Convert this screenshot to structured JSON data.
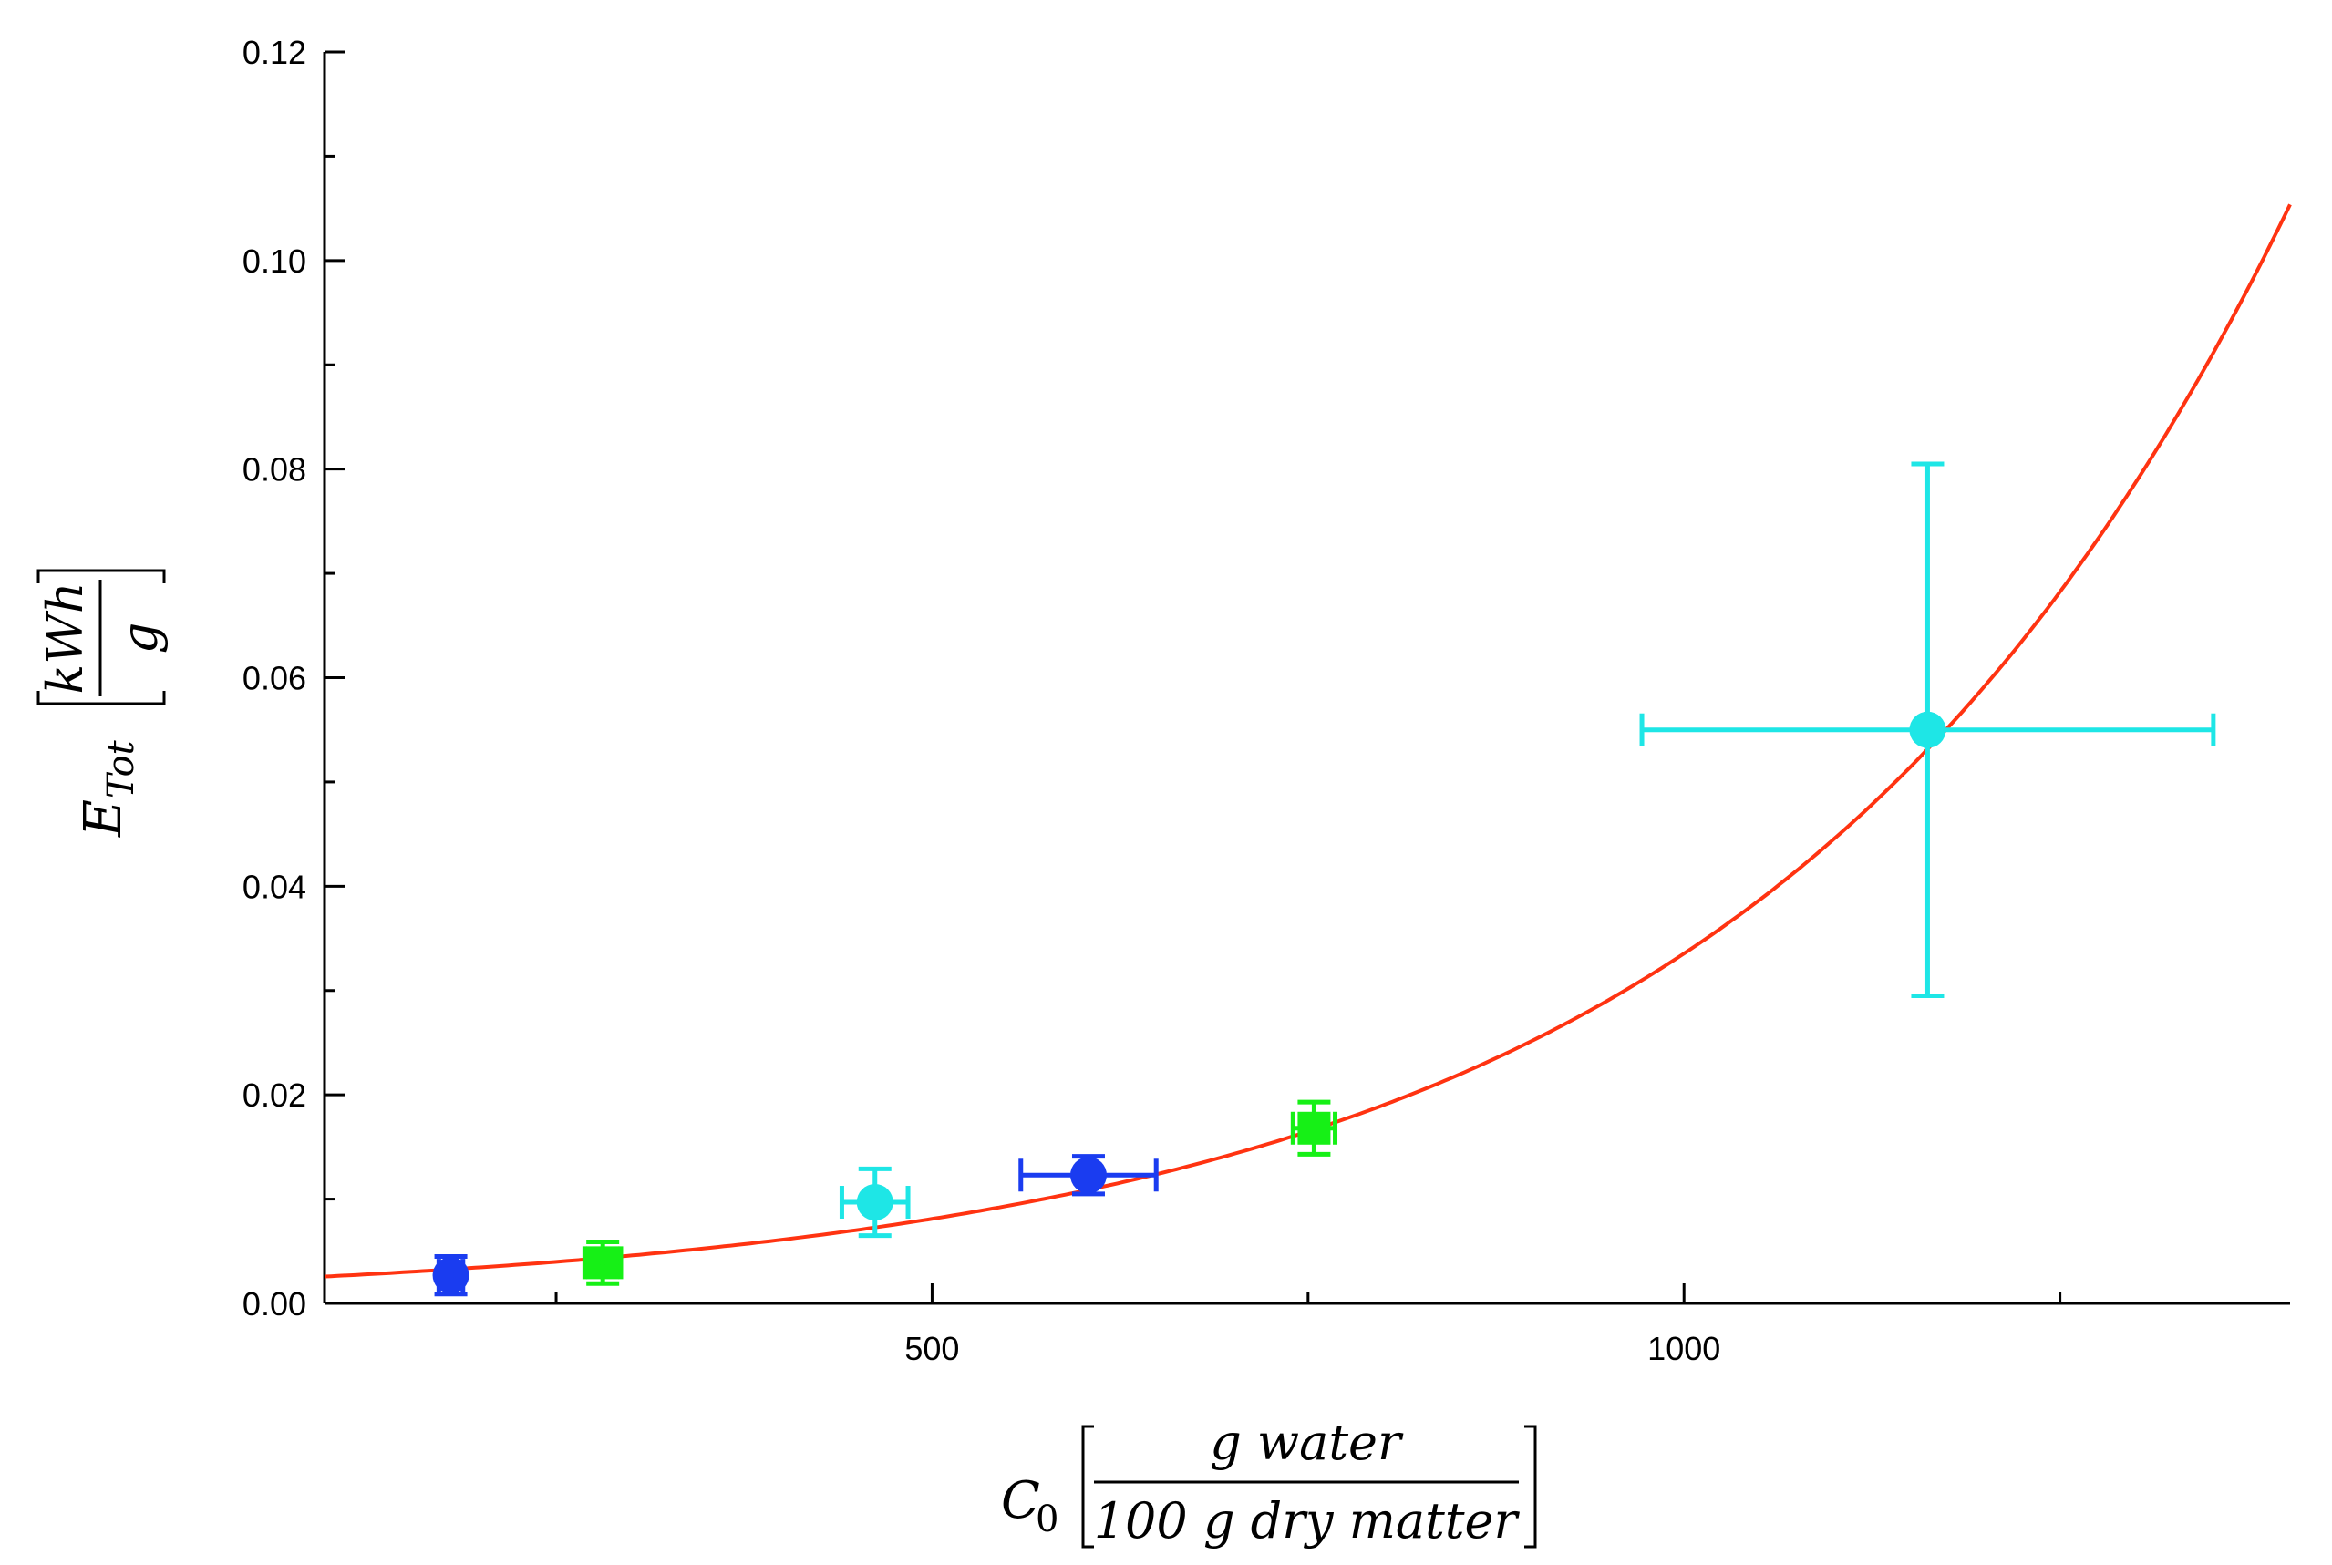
{
  "chart_data": {
    "type": "scatter",
    "xlabel": {
      "symbol": "C",
      "subscript": "0",
      "numerator": "g water",
      "denominator": "100 g dry matter"
    },
    "ylabel": {
      "symbol": "E",
      "subscript": "Tot",
      "numerator": "kWh",
      "denominator": "g"
    },
    "xlim": [
      96,
      1403
    ],
    "ylim": [
      0,
      0.12
    ],
    "x_ticks": [
      {
        "value": 500,
        "label": "500"
      },
      {
        "value": 1000,
        "label": "1000"
      }
    ],
    "x_minor_ticks": [
      250,
      750,
      1250
    ],
    "y_ticks": [
      {
        "value": 0.0,
        "label": "0.00"
      },
      {
        "value": 0.02,
        "label": "0.02"
      },
      {
        "value": 0.04,
        "label": "0.04"
      },
      {
        "value": 0.06,
        "label": "0.06"
      },
      {
        "value": 0.08,
        "label": "0.08"
      },
      {
        "value": 0.1,
        "label": "0.10"
      },
      {
        "value": 0.12,
        "label": "0.12"
      }
    ],
    "y_minor_ticks": [
      0.01,
      0.03,
      0.05,
      0.07,
      0.09,
      0.11
    ],
    "grid": false,
    "legend": "none",
    "points": [
      {
        "x": 180,
        "y": 0.0027,
        "xerr": 8,
        "yerr": 0.0018,
        "color": "#1a3cf0",
        "marker": "circle"
      },
      {
        "x": 281,
        "y": 0.0039,
        "xerr": 12,
        "yerr": 0.002,
        "color": "#16f016",
        "marker": "square"
      },
      {
        "x": 462,
        "y": 0.0097,
        "xerr": 22,
        "yerr": 0.0032,
        "color": "#1ee6e6",
        "marker": "circle"
      },
      {
        "x": 604,
        "y": 0.0123,
        "xerr": 45,
        "yerr": 0.0018,
        "color": "#1a3cf0",
        "marker": "circle"
      },
      {
        "x": 754,
        "y": 0.0168,
        "xerr": 14,
        "yerr": 0.0025,
        "color": "#16f016",
        "marker": "square"
      },
      {
        "x": 1162,
        "y": 0.055,
        "xerr": 190,
        "yerr": 0.0255,
        "color": "#1ee6e6",
        "marker": "circle"
      }
    ],
    "fit_curve": {
      "type": "exponential",
      "a": 0.00196,
      "b": 0.00284,
      "color": "#ff3311"
    }
  }
}
